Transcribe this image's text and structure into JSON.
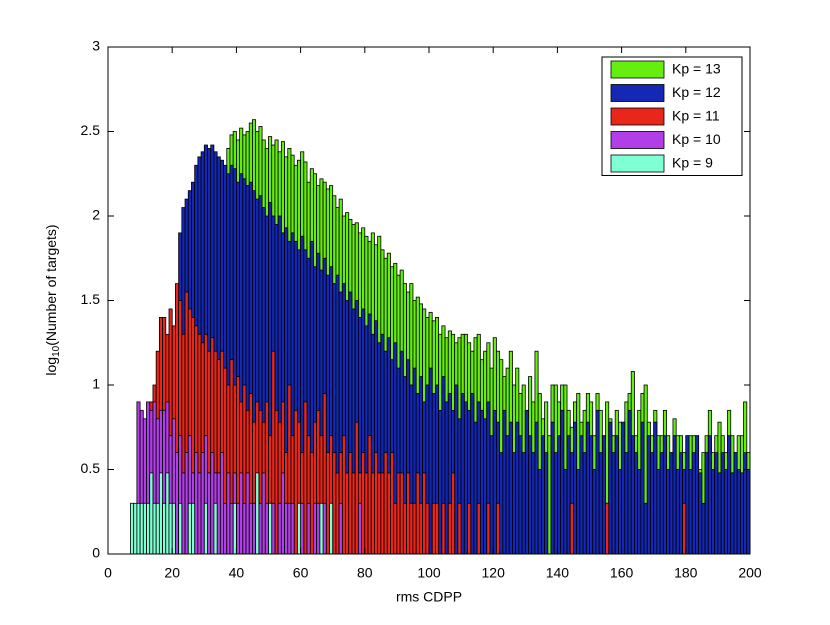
{
  "chart_data": {
    "type": "histogram",
    "xlabel": "rms CDPP",
    "ylabel": [
      "log",
      "10",
      "(Number of targets)"
    ],
    "xlim": [
      0,
      200
    ],
    "xticks": [
      0,
      20,
      40,
      60,
      80,
      100,
      120,
      140,
      160,
      180,
      200
    ],
    "ylim": [
      0,
      3
    ],
    "yticks": [
      0,
      0.5,
      1,
      1.5,
      2,
      2.5,
      3
    ],
    "legend": "upper right",
    "bins": [
      7,
      8,
      9,
      10,
      11,
      12,
      13,
      14,
      15,
      16,
      17,
      18,
      19,
      20,
      21,
      22,
      23,
      24,
      25,
      26,
      27,
      28,
      29,
      30,
      31,
      32,
      33,
      34,
      35,
      36,
      37,
      38,
      39,
      40,
      41,
      42,
      43,
      44,
      45,
      46,
      47,
      48,
      49,
      50,
      51,
      52,
      53,
      54,
      55,
      56,
      57,
      58,
      59,
      60,
      61,
      62,
      63,
      64,
      65,
      66,
      67,
      68,
      69,
      70,
      71,
      72,
      73,
      74,
      75,
      76,
      77,
      78,
      79,
      80,
      81,
      82,
      83,
      84,
      85,
      86,
      87,
      88,
      89,
      90,
      91,
      92,
      93,
      94,
      95,
      96,
      97,
      98,
      99,
      100,
      101,
      102,
      103,
      104,
      105,
      106,
      107,
      108,
      109,
      110,
      111,
      112,
      113,
      114,
      115,
      116,
      117,
      118,
      119,
      120,
      121,
      122,
      123,
      124,
      125,
      126,
      127,
      128,
      129,
      130,
      131,
      132,
      133,
      134,
      135,
      136,
      137,
      138,
      139,
      140,
      141,
      142,
      143,
      144,
      145,
      146,
      147,
      148,
      149,
      150,
      151,
      152,
      153,
      154,
      155,
      156,
      157,
      158,
      159,
      160,
      161,
      162,
      163,
      164,
      165,
      166,
      167,
      168,
      169,
      170,
      171,
      172,
      173,
      174,
      175,
      176,
      177,
      178,
      179,
      180,
      181,
      182,
      183,
      184,
      185,
      186,
      187,
      188,
      189,
      190,
      191,
      192,
      193,
      194,
      195,
      196,
      197,
      198,
      199,
      200
    ],
    "series": [
      {
        "name": "Kp = 13",
        "color": "#66ee11",
        "values": [
          0,
          0,
          0,
          0,
          0,
          0,
          0,
          0,
          0,
          0,
          0,
          0,
          0,
          0,
          0,
          0,
          0,
          0,
          0,
          0,
          0,
          0,
          0,
          0,
          0,
          0,
          0,
          0,
          0,
          2.2,
          2.4,
          2.48,
          2.5,
          2.45,
          2.52,
          2.48,
          2.5,
          2.55,
          2.57,
          2.5,
          2.53,
          2.45,
          2.4,
          2.47,
          2.42,
          2.45,
          2.38,
          2.44,
          2.35,
          2.4,
          2.36,
          2.3,
          2.33,
          2.38,
          2.32,
          2.2,
          2.28,
          2.25,
          2.18,
          2.22,
          2.2,
          2.16,
          2.18,
          2.12,
          2.05,
          2.1,
          2.0,
          2.02,
          1.98,
          1.95,
          1.96,
          1.9,
          1.93,
          1.88,
          1.85,
          1.9,
          1.83,
          1.88,
          1.8,
          1.75,
          1.78,
          1.7,
          1.72,
          1.65,
          1.68,
          1.6,
          1.55,
          1.6,
          1.5,
          1.52,
          1.48,
          1.45,
          1.4,
          1.43,
          1.38,
          1.4,
          1.3,
          1.35,
          1.28,
          1.32,
          1.3,
          1.25,
          1.28,
          1.3,
          1.3,
          1.25,
          1.2,
          1.28,
          1.3,
          1.15,
          1.2,
          1.25,
          1.1,
          1.28,
          1.2,
          1.15,
          1.05,
          1.1,
          1.2,
          1.0,
          1.1,
          0.95,
          1.0,
          0.85,
          1.05,
          0.9,
          1.2,
          0.95,
          0.8,
          0.9,
          0.7,
          1.0,
          1.0,
          0.9,
          1.0,
          1.0,
          0.85,
          0.75,
          0.9,
          0.95,
          0.78,
          0.85,
          0.95,
          0.9,
          0.7,
          0.95,
          0.85,
          0.7,
          0.9,
          0.8,
          0.7,
          0.85,
          0.78,
          0.7,
          0.9,
          0.95,
          1.08,
          0.7,
          0.85,
          0.95,
          1.0,
          0.78,
          0.7,
          0.85,
          0.7,
          0.7,
          0.85,
          0.7,
          0.6,
          0.8,
          0.7,
          0.7,
          0.6,
          0.7,
          0.7,
          0.7,
          0.7,
          0.5,
          0.6,
          0.7,
          0.85,
          0.6,
          0.7,
          0.78,
          0.7,
          0.6,
          0.85,
          0.7,
          0.6,
          0.7,
          0.7,
          0.9,
          0.6
        ]
      },
      {
        "name": "Kp = 12",
        "color": "#1428b4",
        "values": [
          0,
          0,
          0,
          0,
          0,
          0,
          0,
          0,
          0,
          0,
          0,
          0,
          0,
          0,
          1.4,
          1.9,
          2.05,
          2.1,
          2.15,
          2.2,
          2.3,
          2.35,
          2.38,
          2.42,
          2.4,
          2.42,
          2.38,
          2.35,
          2.33,
          2.3,
          2.25,
          2.3,
          2.28,
          2.2,
          2.25,
          2.22,
          2.18,
          2.2,
          2.15,
          2.1,
          2.12,
          2.05,
          2.0,
          2.08,
          2.0,
          1.95,
          2.0,
          1.9,
          1.93,
          1.85,
          1.9,
          1.85,
          1.8,
          1.88,
          1.8,
          1.75,
          1.85,
          1.7,
          1.78,
          1.68,
          1.75,
          1.65,
          1.7,
          1.6,
          1.65,
          1.55,
          1.6,
          1.5,
          1.55,
          1.45,
          1.5,
          1.4,
          1.45,
          1.35,
          1.42,
          1.3,
          1.38,
          1.25,
          1.3,
          1.2,
          1.28,
          1.15,
          1.25,
          1.1,
          1.2,
          1.05,
          1.15,
          1.0,
          1.1,
          0.95,
          1.05,
          0.9,
          1.0,
          1.1,
          0.95,
          1.0,
          0.85,
          1.05,
          0.9,
          0.95,
          0.85,
          1.0,
          0.8,
          0.95,
          0.9,
          0.85,
          0.95,
          0.78,
          0.9,
          0.85,
          0.8,
          0.9,
          0.7,
          0.85,
          0.78,
          0.6,
          0.85,
          0.7,
          0.78,
          0.6,
          0.78,
          0.7,
          0.6,
          0.85,
          0.7,
          0.6,
          0.78,
          0.5,
          0.7,
          0.6,
          0,
          0.78,
          0.6,
          0.7,
          0.85,
          0.5,
          0.7,
          0.6,
          0.78,
          0.5,
          0.7,
          0.6,
          0.78,
          0.7,
          0.5,
          0.85,
          0.6,
          0.7,
          0.3,
          0.78,
          0.6,
          0.7,
          0.5,
          0.78,
          0.6,
          0.85,
          0.7,
          0.6,
          0.5,
          0.78,
          0.3,
          0.7,
          0.6,
          0.78,
          0.5,
          0.6,
          0.7,
          0.5,
          0.6,
          0.7,
          0.5,
          0.6,
          0.5,
          0.7,
          0.5,
          0.6,
          0.7,
          0.48,
          0.3,
          0.6,
          0.7,
          0.5,
          0.6,
          0.48,
          0.6,
          0.5,
          0.7,
          0.48,
          0.6,
          0.5,
          0.48,
          0.6,
          0.5
        ]
      },
      {
        "name": "Kp = 11",
        "color": "#e8261a",
        "values": [
          0,
          0,
          0,
          0,
          0,
          0,
          0.9,
          1.0,
          1.2,
          1.4,
          1.4,
          1.3,
          1.45,
          1.35,
          1.6,
          1.5,
          1.3,
          1.55,
          1.45,
          1.4,
          1.35,
          1.3,
          1.25,
          1.3,
          1.2,
          1.28,
          1.2,
          1.15,
          1.2,
          1.1,
          1.0,
          1.15,
          1.0,
          1.05,
          0.9,
          1.0,
          0.85,
          0.95,
          0.78,
          0.9,
          0.85,
          0.78,
          0.9,
          0.7,
          1.2,
          0.85,
          0.78,
          0.9,
          0.6,
          1.0,
          0.7,
          0.85,
          0.78,
          0.6,
          0.9,
          0.7,
          0.6,
          0.78,
          0.85,
          0.7,
          0.95,
          0.6,
          0.7,
          0.6,
          0.48,
          0.6,
          0.7,
          0.48,
          0.6,
          0.48,
          0.78,
          0.48,
          0.6,
          0.48,
          0.7,
          0.48,
          0.6,
          0.48,
          0.48,
          0.6,
          0.48,
          0.6,
          0.3,
          0.48,
          0.48,
          0.3,
          0.48,
          0.3,
          0.3,
          0.48,
          0.3,
          0.48,
          0.3,
          0,
          0.3,
          0.3,
          0,
          0.3,
          0,
          0.3,
          0.48,
          0,
          0.3,
          0,
          0,
          0.3,
          0,
          0,
          0.3,
          0,
          0,
          0.3,
          0,
          0,
          0.3,
          0,
          0,
          0,
          0,
          0,
          0,
          0,
          0,
          0,
          0,
          0,
          0,
          0,
          0,
          0,
          0,
          0,
          0,
          0,
          0,
          0,
          0,
          0.3,
          0,
          0,
          0,
          0,
          0,
          0,
          0,
          0,
          0,
          0,
          0.3,
          0,
          0,
          0,
          0,
          0,
          0,
          0,
          0,
          0,
          0,
          0,
          0,
          0,
          0,
          0,
          0,
          0,
          0,
          0,
          0,
          0,
          0,
          0,
          0.3,
          0,
          0,
          0,
          0,
          0,
          0,
          0,
          0,
          0,
          0,
          0,
          0,
          0,
          0,
          0,
          0,
          0,
          0,
          0,
          0
        ]
      },
      {
        "name": "Kp = 10",
        "color": "#b23ee8",
        "values": [
          0,
          0,
          0.9,
          0.85,
          0.8,
          0.9,
          0.85,
          0.9,
          0.8,
          0.85,
          0.85,
          0.9,
          0.7,
          0.8,
          0.6,
          0.7,
          0.48,
          0.6,
          0.7,
          0.48,
          0.6,
          0.48,
          0.6,
          0.7,
          0.48,
          0.6,
          0.48,
          0.48,
          0.6,
          0.3,
          0.48,
          0.3,
          0.48,
          0.3,
          0.48,
          0.3,
          0.48,
          0.3,
          0.3,
          0.48,
          0.3,
          0.48,
          0.3,
          0.3,
          0.3,
          0,
          0.3,
          0.48,
          0.3,
          0.3,
          0.3,
          0,
          0.3,
          0.3,
          0,
          0.3,
          0,
          0.3,
          0.3,
          0,
          0.3,
          0,
          0.3,
          0,
          0,
          0.3,
          0,
          0,
          0,
          0,
          0,
          0.3,
          0,
          0,
          0,
          0,
          0,
          0,
          0,
          0,
          0,
          0,
          0,
          0,
          0,
          0,
          0,
          0,
          0,
          0,
          0,
          0,
          0,
          0,
          0,
          0,
          0,
          0,
          0,
          0,
          0,
          0,
          0,
          0,
          0,
          0,
          0,
          0,
          0,
          0,
          0,
          0,
          0,
          0,
          0,
          0,
          0,
          0,
          0,
          0,
          0,
          0,
          0,
          0,
          0,
          0,
          0,
          0,
          0,
          0,
          0,
          0,
          0,
          0,
          0,
          0,
          0,
          0,
          0,
          0,
          0,
          0,
          0,
          0,
          0,
          0,
          0,
          0,
          0,
          0,
          0,
          0,
          0,
          0,
          0,
          0,
          0,
          0,
          0,
          0,
          0,
          0,
          0,
          0,
          0,
          0,
          0,
          0,
          0,
          0,
          0,
          0,
          0,
          0,
          0,
          0,
          0,
          0,
          0,
          0,
          0,
          0,
          0,
          0,
          0,
          0,
          0,
          0,
          0,
          0,
          0,
          0,
          0
        ]
      },
      {
        "name": "Kp = 9",
        "color": "#7fffd4",
        "values": [
          0.3,
          0.3,
          0.3,
          0.3,
          0.3,
          0.3,
          0.48,
          0.3,
          0.3,
          0.48,
          0.3,
          0.48,
          0.3,
          0.3,
          0,
          0.3,
          0,
          0,
          0.3,
          0.3,
          0,
          0,
          0,
          0.3,
          0,
          0,
          0.3,
          0,
          0,
          0,
          0,
          0,
          0.3,
          0,
          0,
          0,
          0,
          0,
          0,
          0.48,
          0,
          0,
          0,
          0.3,
          0,
          0,
          0,
          0,
          0,
          0,
          0,
          0,
          0.3,
          0,
          0,
          0,
          0,
          0,
          0,
          0.3,
          0,
          0,
          0.3,
          0,
          0,
          0,
          0,
          0,
          0,
          0,
          0,
          0,
          0,
          0,
          0,
          0,
          0,
          0,
          0,
          0,
          0,
          0,
          0,
          0,
          0,
          0,
          0,
          0,
          0,
          0,
          0,
          0,
          0,
          0,
          0,
          0,
          0,
          0,
          0,
          0,
          0,
          0,
          0,
          0,
          0,
          0,
          0,
          0,
          0,
          0,
          0,
          0,
          0,
          0,
          0,
          0,
          0,
          0,
          0,
          0,
          0,
          0,
          0,
          0,
          0,
          0,
          0,
          0,
          0,
          0,
          0,
          0,
          0,
          0,
          0,
          0,
          0,
          0,
          0,
          0,
          0,
          0,
          0,
          0,
          0,
          0,
          0,
          0,
          0,
          0,
          0,
          0,
          0,
          0,
          0,
          0,
          0,
          0,
          0,
          0,
          0,
          0,
          0,
          0,
          0,
          0,
          0,
          0,
          0,
          0,
          0,
          0,
          0,
          0,
          0,
          0,
          0,
          0,
          0,
          0,
          0,
          0,
          0,
          0,
          0,
          0,
          0,
          0,
          0,
          0,
          0,
          0,
          0
        ]
      }
    ]
  }
}
